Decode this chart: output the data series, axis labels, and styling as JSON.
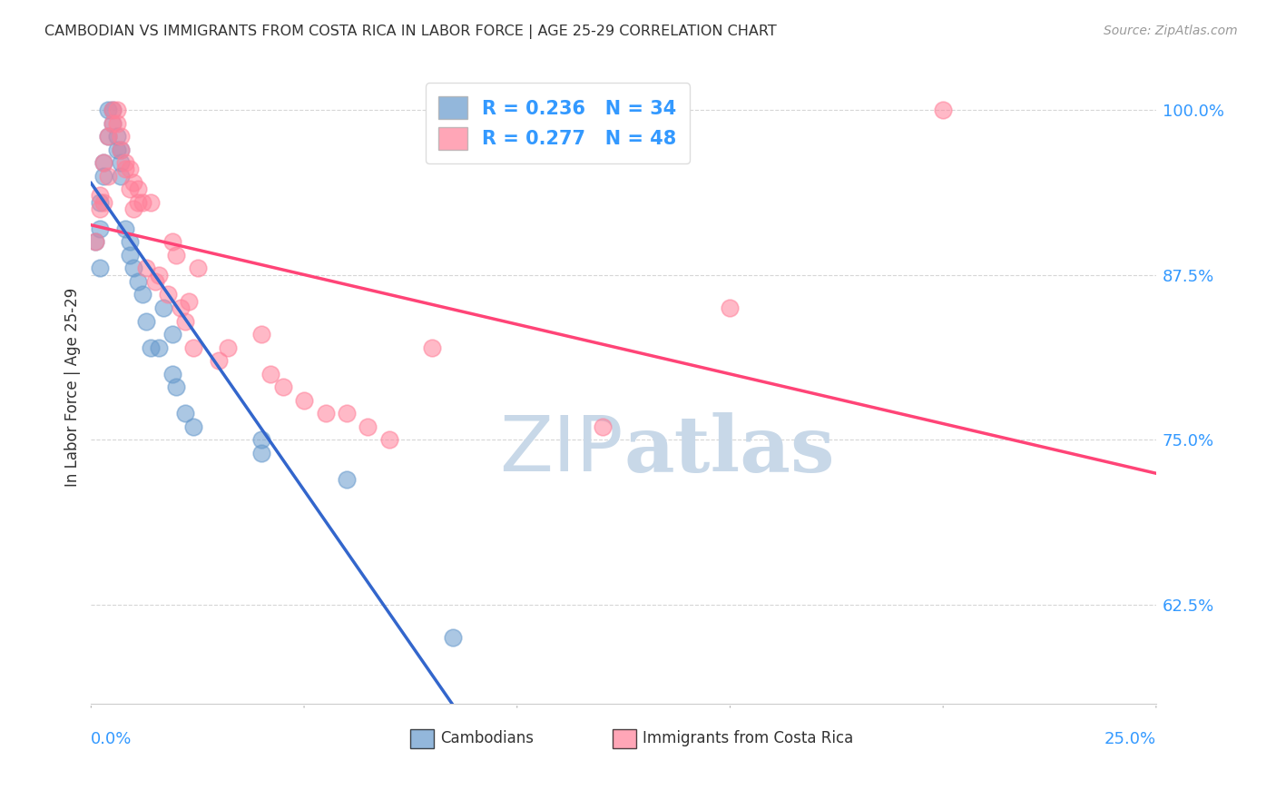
{
  "title": "CAMBODIAN VS IMMIGRANTS FROM COSTA RICA IN LABOR FORCE | AGE 25-29 CORRELATION CHART",
  "source": "Source: ZipAtlas.com",
  "ylabel": "In Labor Force | Age 25-29",
  "xmin": 0.0,
  "xmax": 0.25,
  "ymin": 0.55,
  "ymax": 1.03,
  "cambodian_R": 0.236,
  "cambodian_N": 34,
  "costarica_R": 0.277,
  "costarica_N": 48,
  "cambodian_color": "#6699CC",
  "costarica_color": "#FF8099",
  "cambodian_line_color": "#3366CC",
  "costarica_line_color": "#FF4477",
  "legend_text_color": "#3399FF",
  "title_color": "#333333",
  "watermark_color": "#C8D8E8",
  "grid_color": "#CCCCCC",
  "axis_label_color": "#333333",
  "tick_color": "#3399FF",
  "cambodian_x": [
    0.001,
    0.002,
    0.002,
    0.002,
    0.003,
    0.003,
    0.004,
    0.004,
    0.005,
    0.005,
    0.006,
    0.006,
    0.007,
    0.007,
    0.007,
    0.008,
    0.009,
    0.009,
    0.01,
    0.011,
    0.012,
    0.013,
    0.014,
    0.016,
    0.017,
    0.019,
    0.019,
    0.02,
    0.022,
    0.024,
    0.04,
    0.04,
    0.06,
    0.085
  ],
  "cambodian_y": [
    0.9,
    0.93,
    0.91,
    0.88,
    0.96,
    0.95,
    0.98,
    1.0,
    1.0,
    0.99,
    0.98,
    0.97,
    0.97,
    0.96,
    0.95,
    0.91,
    0.9,
    0.89,
    0.88,
    0.87,
    0.86,
    0.84,
    0.82,
    0.82,
    0.85,
    0.83,
    0.8,
    0.79,
    0.77,
    0.76,
    0.75,
    0.74,
    0.72,
    0.6
  ],
  "costarica_x": [
    0.001,
    0.002,
    0.002,
    0.003,
    0.003,
    0.004,
    0.004,
    0.005,
    0.005,
    0.006,
    0.006,
    0.007,
    0.007,
    0.008,
    0.008,
    0.009,
    0.009,
    0.01,
    0.01,
    0.011,
    0.011,
    0.012,
    0.013,
    0.014,
    0.015,
    0.016,
    0.018,
    0.019,
    0.02,
    0.021,
    0.022,
    0.023,
    0.024,
    0.025,
    0.03,
    0.032,
    0.04,
    0.042,
    0.045,
    0.05,
    0.055,
    0.06,
    0.065,
    0.07,
    0.08,
    0.12,
    0.15,
    0.2
  ],
  "costarica_y": [
    0.9,
    0.935,
    0.925,
    0.96,
    0.93,
    0.98,
    0.95,
    1.0,
    0.99,
    1.0,
    0.99,
    0.98,
    0.97,
    0.96,
    0.955,
    0.955,
    0.94,
    0.945,
    0.925,
    0.94,
    0.93,
    0.93,
    0.88,
    0.93,
    0.87,
    0.875,
    0.86,
    0.9,
    0.89,
    0.85,
    0.84,
    0.855,
    0.82,
    0.88,
    0.81,
    0.82,
    0.83,
    0.8,
    0.79,
    0.78,
    0.77,
    0.77,
    0.76,
    0.75,
    0.82,
    0.76,
    0.85,
    1.0
  ]
}
